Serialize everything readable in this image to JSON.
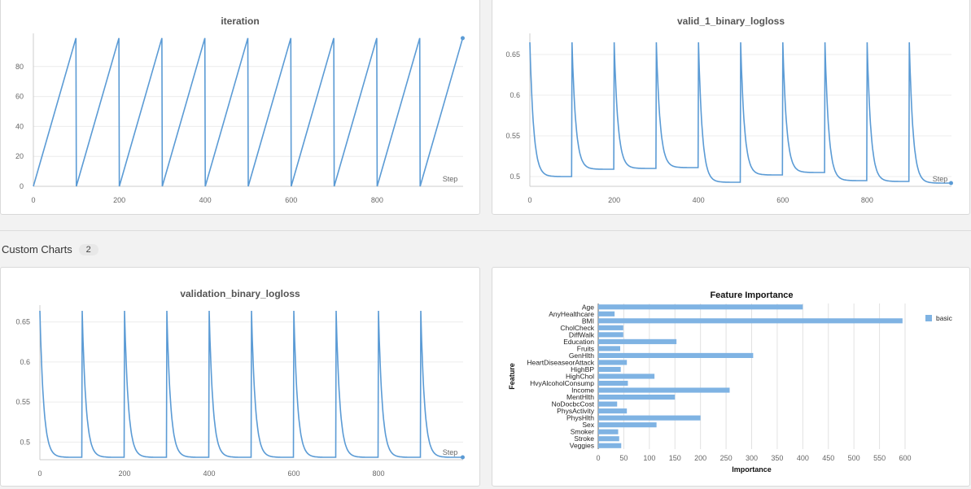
{
  "section": {
    "label": "Custom Charts",
    "count": "2"
  },
  "panels": {
    "iteration": {
      "title": "iteration",
      "step_label": "Step"
    },
    "valid1": {
      "title": "valid_1_binary_logloss",
      "step_label": "Step"
    },
    "validation": {
      "title": "validation_binary_logloss",
      "step_label": "Step"
    },
    "fi": {
      "title": "Feature Importance",
      "ylabel": "Feature",
      "xlabel": "Importance",
      "legend": "basic"
    }
  },
  "colors": {
    "line": "#5b9bd5",
    "bar": "#7fb3e3"
  },
  "chart_data": [
    {
      "type": "line",
      "title": "iteration",
      "xlabel": "Step",
      "xlim": [
        0,
        1000
      ],
      "ylim": [
        0,
        100
      ],
      "xticks": [
        0,
        200,
        400,
        600,
        800
      ],
      "yticks": [
        0,
        20,
        40,
        60,
        80
      ],
      "series": [
        {
          "x": [
            0,
            99,
            100,
            199,
            200,
            299,
            300,
            399,
            400,
            499,
            500,
            599,
            600,
            699,
            700,
            799,
            800,
            899,
            900,
            999
          ],
          "y": [
            0,
            99,
            0,
            99,
            0,
            99,
            0,
            99,
            0,
            99,
            0,
            99,
            0,
            99,
            0,
            99,
            0,
            99,
            0,
            99
          ]
        }
      ]
    },
    {
      "type": "line",
      "title": "valid_1_binary_logloss",
      "xlabel": "Step",
      "xlim": [
        0,
        1000
      ],
      "ylim": [
        0.488,
        0.672
      ],
      "xticks": [
        0,
        200,
        400,
        600,
        800
      ],
      "yticks": [
        0.5,
        0.55,
        0.6,
        0.65
      ],
      "runs": [
        {
          "start": 0,
          "end": 99,
          "peak": 0.665,
          "final": 0.5
        },
        {
          "start": 100,
          "end": 199,
          "peak": 0.665,
          "final": 0.509
        },
        {
          "start": 200,
          "end": 299,
          "peak": 0.665,
          "final": 0.51
        },
        {
          "start": 300,
          "end": 399,
          "peak": 0.665,
          "final": 0.511
        },
        {
          "start": 400,
          "end": 499,
          "peak": 0.665,
          "final": 0.493
        },
        {
          "start": 500,
          "end": 599,
          "peak": 0.665,
          "final": 0.502
        },
        {
          "start": 600,
          "end": 699,
          "peak": 0.665,
          "final": 0.505
        },
        {
          "start": 700,
          "end": 799,
          "peak": 0.665,
          "final": 0.495
        },
        {
          "start": 800,
          "end": 899,
          "peak": 0.665,
          "final": 0.494
        },
        {
          "start": 900,
          "end": 999,
          "peak": 0.665,
          "final": 0.492
        }
      ]
    },
    {
      "type": "line",
      "title": "validation_binary_logloss",
      "xlabel": "Step",
      "xlim": [
        0,
        1000
      ],
      "ylim": [
        0.478,
        0.667
      ],
      "xticks": [
        0,
        200,
        400,
        600,
        800
      ],
      "yticks": [
        0.5,
        0.55,
        0.6,
        0.65
      ],
      "runs": [
        {
          "start": 0,
          "end": 99,
          "peak": 0.664,
          "final": 0.481
        },
        {
          "start": 100,
          "end": 199,
          "peak": 0.664,
          "final": 0.481
        },
        {
          "start": 200,
          "end": 299,
          "peak": 0.664,
          "final": 0.481
        },
        {
          "start": 300,
          "end": 399,
          "peak": 0.664,
          "final": 0.481
        },
        {
          "start": 400,
          "end": 499,
          "peak": 0.664,
          "final": 0.481
        },
        {
          "start": 500,
          "end": 599,
          "peak": 0.664,
          "final": 0.481
        },
        {
          "start": 600,
          "end": 699,
          "peak": 0.664,
          "final": 0.481
        },
        {
          "start": 700,
          "end": 799,
          "peak": 0.664,
          "final": 0.481
        },
        {
          "start": 800,
          "end": 899,
          "peak": 0.664,
          "final": 0.481
        },
        {
          "start": 900,
          "end": 999,
          "peak": 0.664,
          "final": 0.481
        }
      ]
    },
    {
      "type": "bar",
      "orientation": "horizontal",
      "title": "Feature Importance",
      "xlabel": "Importance",
      "ylabel": "Feature",
      "xlim": [
        0,
        600
      ],
      "xticks": [
        0,
        50,
        100,
        150,
        200,
        250,
        300,
        350,
        400,
        450,
        500,
        550,
        600
      ],
      "legend": "basic",
      "categories": [
        "Age",
        "AnyHealthcare",
        "BMI",
        "CholCheck",
        "DiffWalk",
        "Education",
        "Fruits",
        "GenHlth",
        "HeartDiseaseorAttack",
        "HighBP",
        "HighChol",
        "HvyAlcoholConsump",
        "Income",
        "MentHlth",
        "NoDocbcCost",
        "PhysActivity",
        "PhysHlth",
        "Sex",
        "Smoker",
        "Stroke",
        "Veggies"
      ],
      "values": [
        400,
        32,
        595,
        49,
        49,
        153,
        43,
        303,
        56,
        44,
        110,
        58,
        257,
        150,
        37,
        56,
        200,
        114,
        39,
        41,
        45
      ]
    }
  ]
}
